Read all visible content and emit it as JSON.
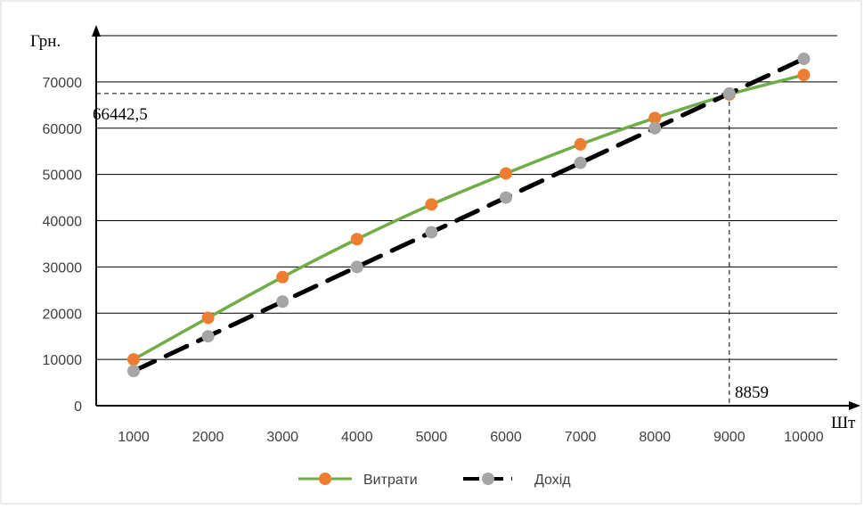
{
  "chart_data": {
    "type": "line",
    "ylabel": "Грн.",
    "xlabel": "Шт",
    "categories": [
      "1000",
      "2000",
      "3000",
      "4000",
      "5000",
      "6000",
      "7000",
      "8000",
      "9000",
      "10000"
    ],
    "x": [
      1000,
      2000,
      3000,
      4000,
      5000,
      6000,
      7000,
      8000,
      9000,
      10000
    ],
    "yticks": [
      0,
      10000,
      20000,
      30000,
      40000,
      50000,
      60000,
      70000
    ],
    "ylim": [
      0,
      80000
    ],
    "grid": true,
    "legend_position": "bottom",
    "series": [
      {
        "name": "Витрати",
        "color": "#70ad47",
        "marker_color": "#ed7d31",
        "line_style": "solid",
        "values": [
          10000,
          19000,
          27800,
          36000,
          43500,
          50200,
          56500,
          62200,
          67300,
          71500
        ]
      },
      {
        "name": "Дохід",
        "color": "#000000",
        "marker_color": "#a5a5a5",
        "line_style": "dashed",
        "values": [
          7500,
          15000,
          22500,
          30000,
          37500,
          45000,
          52500,
          60000,
          67500,
          75000
        ]
      }
    ],
    "annotations": {
      "y_value_label": "66442,5",
      "y_value": 67500,
      "x_value_label": "8859",
      "x_value": 9000
    }
  }
}
